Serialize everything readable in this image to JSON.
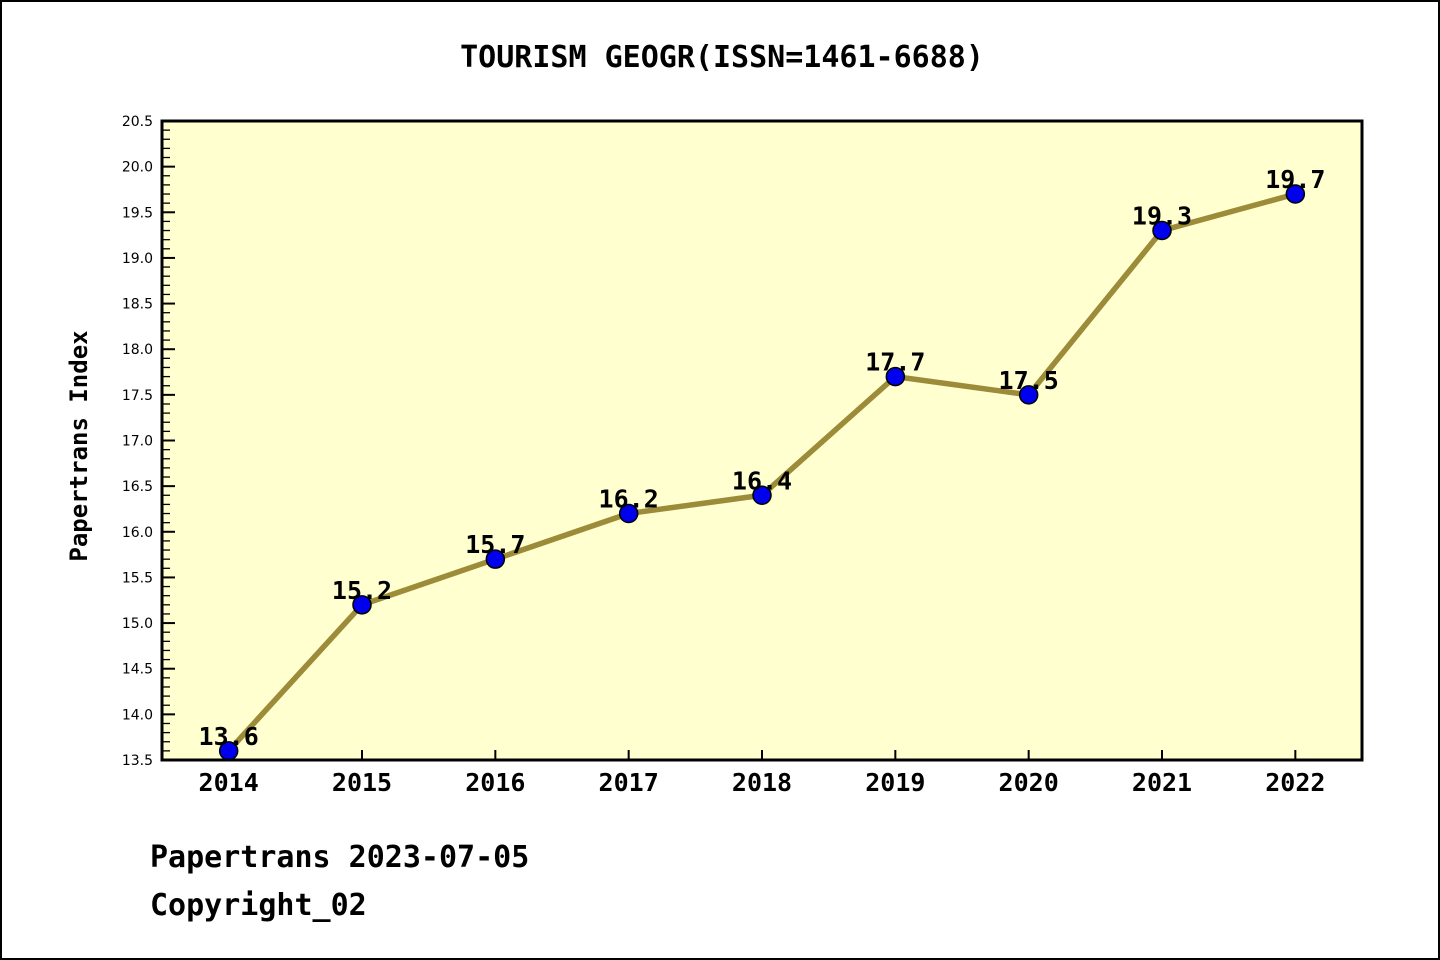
{
  "title": "TOURISM GEOGR(ISSN=1461-6688)",
  "footer": {
    "line1": "Papertrans 2023-07-05",
    "line2": "Copyright_02"
  },
  "chart_data": {
    "type": "line",
    "title": "TOURISM GEOGR(ISSN=1461-6688)",
    "xlabel": "",
    "ylabel": "Papertrans Index",
    "x": [
      2014,
      2015,
      2016,
      2017,
      2018,
      2019,
      2020,
      2021,
      2022
    ],
    "x_tick_labels": [
      "2014",
      "2015",
      "2016",
      "2017",
      "2018",
      "2019",
      "2020",
      "2021",
      "2022"
    ],
    "series": [
      {
        "name": "Papertrans Index",
        "values": [
          13.6,
          15.2,
          15.7,
          16.2,
          16.4,
          17.7,
          17.5,
          19.3,
          19.7
        ],
        "point_labels": [
          "13.6",
          "15.2",
          "15.7",
          "16.2",
          "16.4",
          "17.7",
          "17.5",
          "19.3",
          "19.7"
        ]
      }
    ],
    "xlim": [
      2013.5,
      2022.5
    ],
    "ylim": [
      13.5,
      20.5
    ],
    "y_major_step": 0.5,
    "y_minor_step": 0.1,
    "grid": false,
    "legend": "none",
    "colors": {
      "plot_background": "#FFFFCF",
      "page_background": "#FFFFFF",
      "line": "#9C8B38",
      "marker_fill": "#0000EE",
      "marker_edge": "#000000",
      "axis": "#000000",
      "text": "#000000"
    }
  }
}
